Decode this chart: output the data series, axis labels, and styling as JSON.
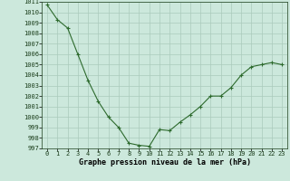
{
  "x": [
    0,
    1,
    2,
    3,
    4,
    5,
    6,
    7,
    8,
    9,
    10,
    11,
    12,
    13,
    14,
    15,
    16,
    17,
    18,
    19,
    20,
    21,
    22,
    23
  ],
  "y": [
    1010.7,
    1009.3,
    1008.5,
    1006.0,
    1003.5,
    1001.5,
    1000.0,
    999.0,
    997.5,
    997.3,
    997.2,
    998.8,
    998.7,
    999.5,
    1000.2,
    1001.0,
    1002.0,
    1002.0,
    1002.8,
    1004.0,
    1004.8,
    1005.0,
    1005.2,
    1005.0
  ],
  "ylim": [
    997,
    1011
  ],
  "yticks": [
    997,
    998,
    999,
    1000,
    1001,
    1002,
    1003,
    1004,
    1005,
    1006,
    1007,
    1008,
    1009,
    1010,
    1011
  ],
  "xlabel": "Graphe pression niveau de la mer (hPa)",
  "line_color": "#2d6a2d",
  "bg_color": "#cce8dc",
  "grid_color": "#aacabc",
  "tick_color": "#1a3d1a",
  "label_fontsize": 5.0,
  "xlabel_fontsize": 6.0
}
